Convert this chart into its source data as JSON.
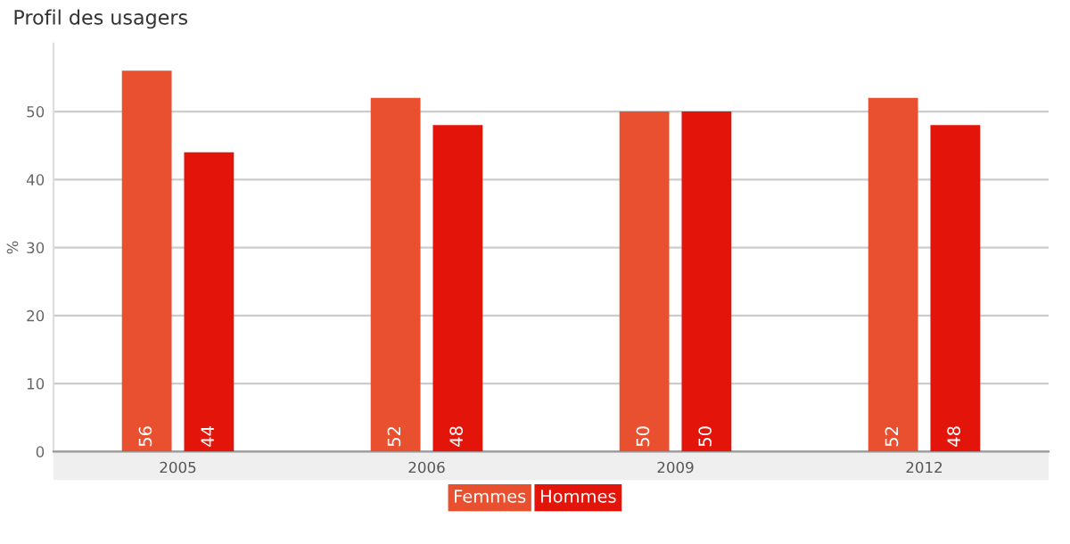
{
  "chart_data": {
    "type": "bar",
    "title": "Profil des usagers",
    "ylabel": "%",
    "categories": [
      "2005",
      "2006",
      "2009",
      "2012"
    ],
    "series": [
      {
        "name": "Femmes",
        "color": "#e8502f",
        "values": [
          56,
          52,
          50,
          52
        ]
      },
      {
        "name": "Hommes",
        "color": "#e3140a",
        "values": [
          44,
          48,
          50,
          48
        ]
      }
    ],
    "ylim": [
      0,
      60
    ],
    "yticks": [
      0,
      10,
      20,
      30,
      40,
      50
    ],
    "grid": "y",
    "data_labels": true,
    "legend": "bottom"
  }
}
